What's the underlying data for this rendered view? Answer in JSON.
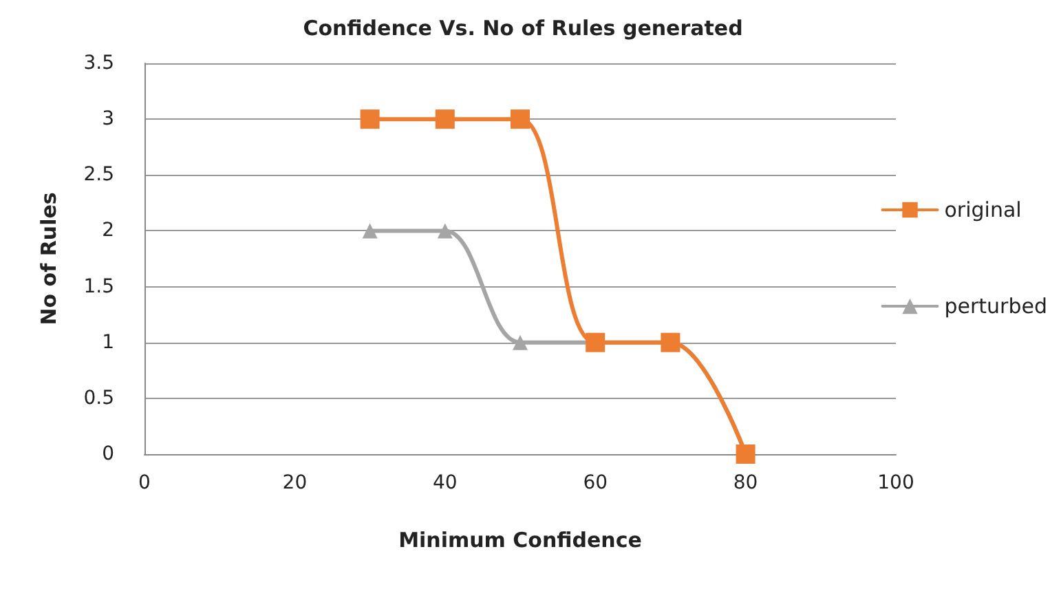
{
  "chart_data": {
    "type": "line",
    "title": "Confidence Vs. No of Rules generated",
    "xlabel": "Minimum Confidence",
    "ylabel": "No of Rules",
    "x": [
      30,
      40,
      50,
      60,
      70,
      80
    ],
    "series": [
      {
        "name": "original",
        "color": "#ed7d31",
        "values": [
          3,
          3,
          3,
          1,
          1,
          0
        ],
        "marker": "square"
      },
      {
        "name": "perturbed",
        "color": "#a5a5a5",
        "values": [
          2,
          2,
          1,
          1,
          1,
          0
        ],
        "marker": "triangle"
      }
    ],
    "xlim": [
      0,
      100
    ],
    "xticks": [
      0,
      20,
      40,
      60,
      80,
      100
    ],
    "ylim": [
      0,
      3.5
    ],
    "yticks": [
      0,
      0.5,
      1,
      1.5,
      2,
      2.5,
      3,
      3.5
    ],
    "grid": "y",
    "legend": "right"
  }
}
